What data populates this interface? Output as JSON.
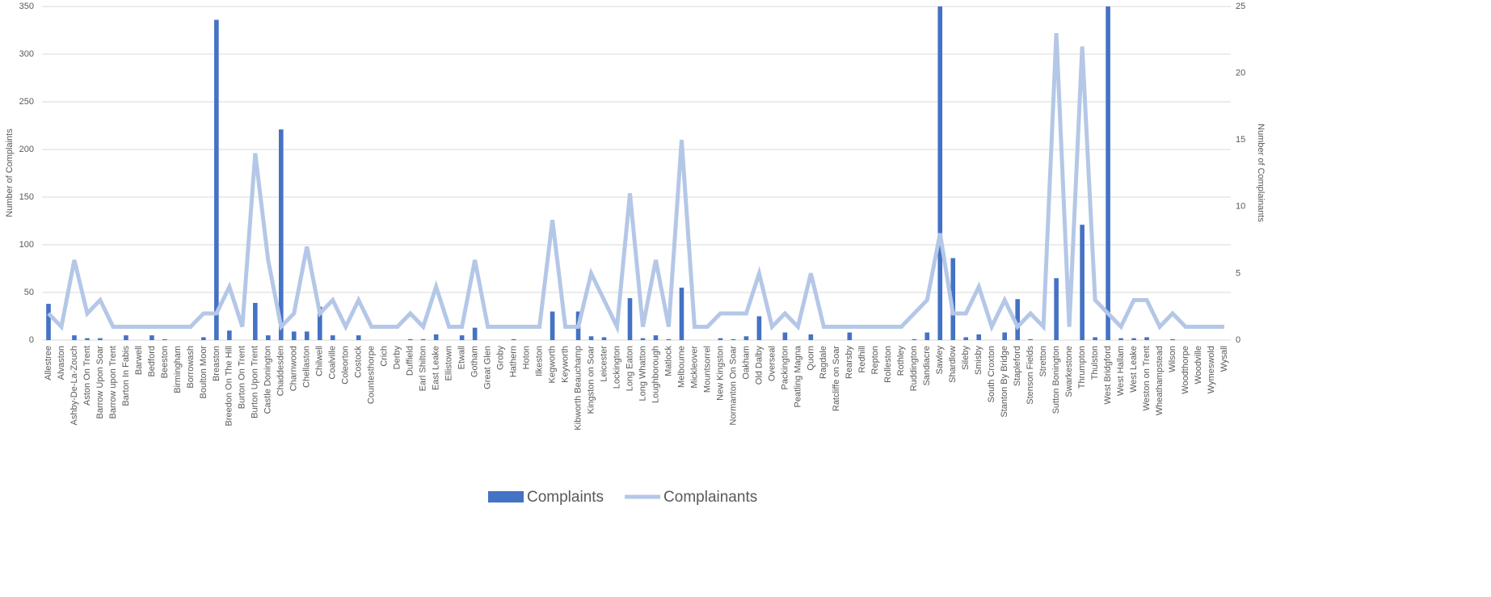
{
  "chart_data": {
    "type": "bar-line",
    "y_label": "Number of Complaints",
    "y2_label": "Number of Complainants",
    "categories": [
      "Allestree",
      "Alvaston",
      "Ashby-De-La-Zouch",
      "Aston On Trent",
      "Barrow Upon Soar",
      "Barrow upon Trent",
      "Barton In Fabis",
      "Barwell",
      "Bedford",
      "Beeston",
      "Birmingham",
      "Borrowash",
      "Boulton Moor",
      "Breaston",
      "Breedon On The Hill",
      "Burton On Trent",
      "Burton Upon Trent",
      "Castle Donington",
      "Chaddesden",
      "Charnwood",
      "Chellaston",
      "Chilwell",
      "Coalville",
      "Coleorton",
      "Costock",
      "Countesthorpe",
      "Crich",
      "Derby",
      "Duffield",
      "Earl Shilton",
      "East Leake",
      "Ellistown",
      "Etwall",
      "Gotham",
      "Great Glen",
      "Groby",
      "Hathern",
      "Hoton",
      "Ilkeston",
      "Kegworth",
      "Keyworth",
      "Kibworth Beauchamp",
      "Kingston on Soar",
      "Leicester",
      "Lockington",
      "Long Eaton",
      "Long Whatton",
      "Loughborough",
      "Matlock",
      "Melbourne",
      "Mickleover",
      "Mountsorrel",
      "New Kingston",
      "Normanton On Soar",
      "Oakham",
      "Old Dalby",
      "Overseal",
      "Packington",
      "Peatling Magna",
      "Quorn",
      "Ragdale",
      "Ratcliffe on Soar",
      "Rearsby",
      "Redhill",
      "Repton",
      "Rolleston",
      "Rothley",
      "Ruddington",
      "Sandiacre",
      "Sawley",
      "Shardlow",
      "Sileby",
      "Smisby",
      "South Croxton",
      "Stanton By Bridge",
      "Stapleford",
      "Stenson Fields",
      "Stretton",
      "Sutton Bonington",
      "Swarkestone",
      "Thrumpton",
      "Thulston",
      "West Bridgford",
      "West Hallam",
      "West Leake",
      "Weston on Trent",
      "Wheathampstead",
      "Wilson",
      "Woodthorpe",
      "Woodville",
      "Wymeswold",
      "Wysall"
    ],
    "series": [
      {
        "name": "Complaints",
        "color": "#4472c4",
        "kind": "bar",
        "values": [
          38,
          0,
          5,
          2,
          2,
          0,
          5,
          0,
          5,
          1,
          0,
          0,
          3,
          336,
          10,
          0,
          39,
          5,
          221,
          9,
          9,
          35,
          5,
          0,
          5,
          0,
          0,
          0,
          1,
          1,
          6,
          0,
          5,
          13,
          0,
          0,
          1,
          0,
          0,
          30,
          0,
          30,
          4,
          3,
          0,
          44,
          2,
          5,
          1,
          55,
          0,
          0,
          2,
          1,
          4,
          25,
          0,
          8,
          0,
          6,
          0,
          0,
          8,
          0,
          0,
          0,
          0,
          1,
          8,
          350,
          86,
          3,
          6,
          0,
          8,
          43,
          1,
          0,
          65,
          0,
          121,
          3,
          350,
          2,
          2,
          3,
          0,
          1,
          0,
          0,
          0,
          0
        ]
      },
      {
        "name": "Complainants",
        "color": "#b4c7e7",
        "kind": "line",
        "axis": "y2",
        "values": [
          2,
          1,
          6,
          2,
          3,
          1,
          1,
          1,
          1,
          1,
          1,
          1,
          2,
          2,
          4,
          1,
          14,
          6,
          1,
          2,
          7,
          2,
          3,
          1,
          3,
          1,
          1,
          1,
          2,
          1,
          4,
          1,
          1,
          6,
          1,
          1,
          1,
          1,
          1,
          9,
          1,
          1,
          5,
          3,
          1,
          11,
          1,
          6,
          1,
          15,
          1,
          1,
          2,
          2,
          2,
          5,
          1,
          2,
          1,
          5,
          1,
          1,
          1,
          1,
          1,
          1,
          1,
          2,
          3,
          8,
          2,
          2,
          4,
          1,
          3,
          1,
          2,
          1,
          23,
          1,
          22,
          3,
          2,
          1,
          3,
          3,
          1,
          2,
          1,
          1,
          1,
          1
        ]
      }
    ],
    "ylim": [
      0,
      350
    ],
    "yticks": [
      0,
      50,
      100,
      150,
      200,
      250,
      300,
      350
    ],
    "y2lim": [
      0,
      25
    ],
    "y2ticks": [
      0,
      5,
      10,
      15,
      20,
      25
    ],
    "grid": true,
    "legend": "bottom"
  }
}
